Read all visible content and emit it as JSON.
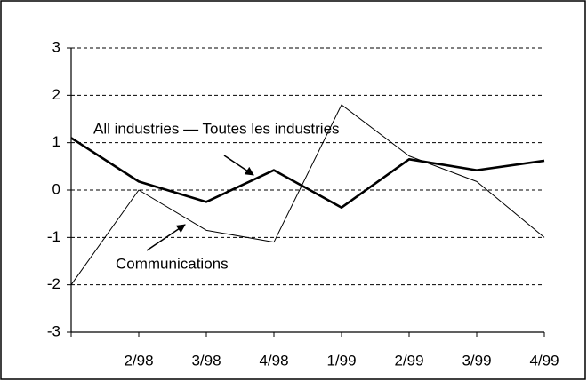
{
  "chart_data": {
    "type": "line",
    "categories": [
      null,
      "2/98",
      "3/98",
      "4/98",
      "1/99",
      "2/99",
      "3/99",
      "4/99"
    ],
    "series": [
      {
        "name": "All industries — Toutes les industries",
        "color": "#000000",
        "width": "thick",
        "values": [
          1.1,
          0.18,
          -0.25,
          0.42,
          -0.37,
          0.65,
          0.42,
          0.62
        ]
      },
      {
        "name": "Communications",
        "color": "#000000",
        "width": "thin",
        "values": [
          -2.0,
          0.0,
          -0.85,
          -1.1,
          1.8,
          0.72,
          0.18,
          -1.0
        ]
      }
    ],
    "ylim": [
      -3,
      3
    ],
    "yticks": [
      -3,
      -2,
      -1,
      0,
      1,
      2,
      3
    ],
    "grid": true
  }
}
